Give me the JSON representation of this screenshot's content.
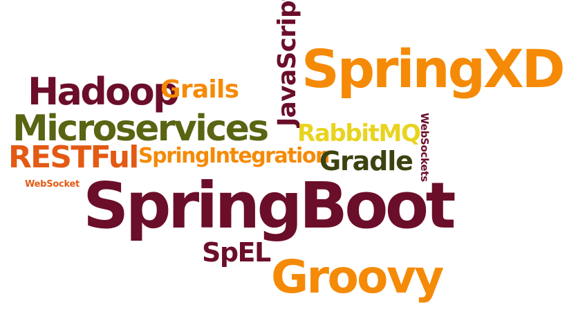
{
  "colors": {
    "maroon": "#6b0e2a",
    "orange": "#f58a07",
    "olive": "#5a6412",
    "darkolive": "#3d4210",
    "yellow": "#e8d41e",
    "redorange": "#e35a14"
  },
  "words": {
    "springxd": "SpringXD",
    "javascript": "JavaScript",
    "hadoop": "Hadoop",
    "grails": "Grails",
    "microservices": "Microservices",
    "rabbitmq": "RabbitMQ",
    "websockets": "WebSockets",
    "restful": "RESTFul",
    "springintegration": "SpringIntegration",
    "gradle": "Gradle",
    "websocket": "WebSocket",
    "springboot": "SpringBoot",
    "spel": "SpEL",
    "groovy": "Groovy"
  }
}
